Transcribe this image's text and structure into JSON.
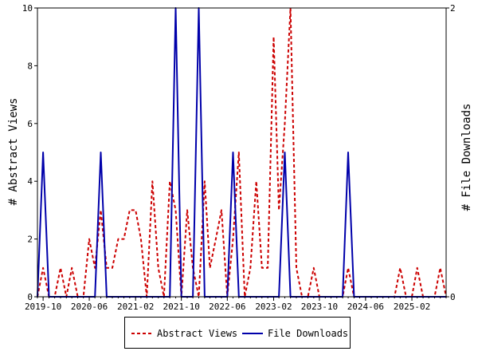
{
  "chart_data": {
    "type": "line",
    "x_ticks": [
      "2019-10",
      "2020-06",
      "2021-02",
      "2021-10",
      "2022-06",
      "2023-02",
      "2023-10",
      "2024-06",
      "2025-02"
    ],
    "y_left": {
      "label": "# Abstract Views",
      "ticks": [
        "0",
        "2",
        "4",
        "6",
        "8",
        "10"
      ],
      "ylim": [
        0,
        10
      ]
    },
    "y_right": {
      "label": "# File Downloads",
      "ticks": [
        "0",
        "2"
      ],
      "ylim": [
        0,
        2
      ]
    },
    "series": [
      {
        "name": "Abstract Views",
        "axis": "left",
        "color": "#cc0000",
        "style": "dashed",
        "points": [
          [
            "2019-09-01",
            0
          ],
          [
            "2019-10-01",
            1
          ],
          [
            "2019-11-01",
            0
          ],
          [
            "2019-12-01",
            0
          ],
          [
            "2020-01-01",
            1
          ],
          [
            "2020-02-01",
            0
          ],
          [
            "2020-03-01",
            1
          ],
          [
            "2020-04-01",
            0
          ],
          [
            "2020-05-01",
            0
          ],
          [
            "2020-06-01",
            2
          ],
          [
            "2020-07-01",
            1
          ],
          [
            "2020-08-01",
            3
          ],
          [
            "2020-09-01",
            1
          ],
          [
            "2020-10-01",
            1
          ],
          [
            "2020-11-01",
            2
          ],
          [
            "2020-12-01",
            2
          ],
          [
            "2021-01-01",
            3
          ],
          [
            "2021-02-01",
            3
          ],
          [
            "2021-03-01",
            2
          ],
          [
            "2021-04-01",
            0
          ],
          [
            "2021-05-01",
            4
          ],
          [
            "2021-06-01",
            1
          ],
          [
            "2021-07-01",
            0
          ],
          [
            "2021-08-01",
            4
          ],
          [
            "2021-09-01",
            3
          ],
          [
            "2021-10-01",
            0
          ],
          [
            "2021-11-01",
            3
          ],
          [
            "2021-12-01",
            1
          ],
          [
            "2022-01-01",
            0
          ],
          [
            "2022-02-01",
            4
          ],
          [
            "2022-03-01",
            1
          ],
          [
            "2022-04-01",
            2
          ],
          [
            "2022-05-01",
            3
          ],
          [
            "2022-06-01",
            0
          ],
          [
            "2022-07-01",
            2
          ],
          [
            "2022-08-01",
            5
          ],
          [
            "2022-09-01",
            0
          ],
          [
            "2022-10-01",
            1
          ],
          [
            "2022-11-01",
            4
          ],
          [
            "2022-12-01",
            1
          ],
          [
            "2023-01-01",
            1
          ],
          [
            "2023-02-01",
            9
          ],
          [
            "2023-03-01",
            3
          ],
          [
            "2023-04-01",
            6
          ],
          [
            "2023-05-01",
            10
          ],
          [
            "2023-06-01",
            1
          ],
          [
            "2023-07-01",
            0
          ],
          [
            "2023-08-01",
            0
          ],
          [
            "2023-09-01",
            1
          ],
          [
            "2023-10-01",
            0
          ],
          [
            "2023-11-01",
            0
          ],
          [
            "2023-12-01",
            0
          ],
          [
            "2024-01-01",
            0
          ],
          [
            "2024-02-01",
            0
          ],
          [
            "2024-03-01",
            1
          ],
          [
            "2024-04-01",
            0
          ],
          [
            "2024-05-01",
            0
          ],
          [
            "2024-06-01",
            0
          ],
          [
            "2024-07-01",
            0
          ],
          [
            "2024-08-01",
            0
          ],
          [
            "2024-09-01",
            0
          ],
          [
            "2024-10-01",
            0
          ],
          [
            "2024-11-01",
            0
          ],
          [
            "2024-12-01",
            1
          ],
          [
            "2025-01-01",
            0
          ],
          [
            "2025-02-01",
            0
          ],
          [
            "2025-03-01",
            1
          ],
          [
            "2025-04-01",
            0
          ],
          [
            "2025-05-01",
            0
          ],
          [
            "2025-06-01",
            0
          ],
          [
            "2025-07-01",
            1
          ],
          [
            "2025-08-01",
            0
          ]
        ]
      },
      {
        "name": "File Downloads",
        "axis": "right",
        "color": "#0000aa",
        "style": "solid",
        "points": [
          [
            "2019-09-01",
            0
          ],
          [
            "2019-10-01",
            1
          ],
          [
            "2019-11-01",
            0
          ],
          [
            "2019-12-01",
            0
          ],
          [
            "2020-01-01",
            0
          ],
          [
            "2020-02-01",
            0
          ],
          [
            "2020-03-01",
            0
          ],
          [
            "2020-04-01",
            0
          ],
          [
            "2020-05-01",
            0
          ],
          [
            "2020-06-01",
            0
          ],
          [
            "2020-07-01",
            0
          ],
          [
            "2020-08-01",
            1
          ],
          [
            "2020-09-01",
            0
          ],
          [
            "2020-10-01",
            0
          ],
          [
            "2020-11-01",
            0
          ],
          [
            "2020-12-01",
            0
          ],
          [
            "2021-01-01",
            0
          ],
          [
            "2021-02-01",
            0
          ],
          [
            "2021-03-01",
            0
          ],
          [
            "2021-04-01",
            0
          ],
          [
            "2021-05-01",
            0
          ],
          [
            "2021-06-01",
            0
          ],
          [
            "2021-07-01",
            0
          ],
          [
            "2021-08-01",
            0
          ],
          [
            "2021-09-01",
            2
          ],
          [
            "2021-10-01",
            0
          ],
          [
            "2021-11-01",
            0
          ],
          [
            "2021-12-01",
            0
          ],
          [
            "2022-01-01",
            2
          ],
          [
            "2022-02-01",
            0
          ],
          [
            "2022-03-01",
            0
          ],
          [
            "2022-04-01",
            0
          ],
          [
            "2022-05-01",
            0
          ],
          [
            "2022-06-01",
            0
          ],
          [
            "2022-07-01",
            1
          ],
          [
            "2022-08-01",
            0
          ],
          [
            "2022-09-01",
            0
          ],
          [
            "2022-10-01",
            0
          ],
          [
            "2022-11-01",
            0
          ],
          [
            "2022-12-01",
            0
          ],
          [
            "2023-01-01",
            0
          ],
          [
            "2023-02-01",
            0
          ],
          [
            "2023-03-01",
            0
          ],
          [
            "2023-04-01",
            1
          ],
          [
            "2023-05-01",
            0
          ],
          [
            "2023-06-01",
            0
          ],
          [
            "2023-07-01",
            0
          ],
          [
            "2023-08-01",
            0
          ],
          [
            "2023-09-01",
            0
          ],
          [
            "2023-10-01",
            0
          ],
          [
            "2023-11-01",
            0
          ],
          [
            "2023-12-01",
            0
          ],
          [
            "2024-01-01",
            0
          ],
          [
            "2024-02-01",
            0
          ],
          [
            "2024-03-01",
            1
          ],
          [
            "2024-04-01",
            0
          ],
          [
            "2024-05-01",
            0
          ],
          [
            "2024-06-01",
            0
          ],
          [
            "2024-07-01",
            0
          ],
          [
            "2024-08-01",
            0
          ],
          [
            "2024-09-01",
            0
          ],
          [
            "2024-10-01",
            0
          ],
          [
            "2024-11-01",
            0
          ],
          [
            "2024-12-01",
            0
          ],
          [
            "2025-01-01",
            0
          ],
          [
            "2025-02-01",
            0
          ],
          [
            "2025-03-01",
            0
          ],
          [
            "2025-04-01",
            0
          ],
          [
            "2025-05-01",
            0
          ],
          [
            "2025-06-01",
            0
          ],
          [
            "2025-07-01",
            0
          ],
          [
            "2025-08-01",
            0
          ]
        ]
      }
    ],
    "grid": false,
    "legend_position": "bottom-center"
  },
  "legend": {
    "abstract_views": "Abstract Views",
    "file_downloads": "File Downloads"
  }
}
